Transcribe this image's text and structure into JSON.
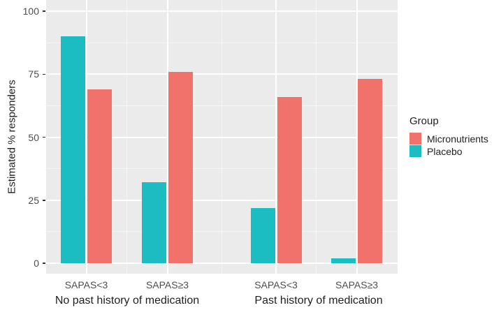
{
  "legend": {
    "title": "Group",
    "position": "right-middle"
  },
  "style": {
    "panel_background": "#EBEBEB",
    "gridline_color": "#FFFFFF",
    "tick_label_color": "#4D4D4D",
    "text_color": "#1F1F1F"
  },
  "chart_data": {
    "type": "bar",
    "title": "",
    "xlabel": "",
    "ylabel": "Estimated % responders",
    "ylim": [
      0,
      100
    ],
    "yticks": [
      0,
      25,
      50,
      75,
      100
    ],
    "grid": "white major and minor gridlines on grey panel",
    "legend_position": "right",
    "facets": [
      "No past history of medication",
      "Past history of medication"
    ],
    "categories": [
      "SAPAS<3",
      "SAPAS≥3",
      "SAPAS<3",
      "SAPAS≥3"
    ],
    "category_facet_index": [
      0,
      0,
      1,
      1
    ],
    "series": [
      {
        "name": "Placebo",
        "color": "#1CBDC2",
        "values": [
          90,
          32,
          22,
          2
        ]
      },
      {
        "name": "Micronutrients",
        "color": "#F1716B",
        "values": [
          69,
          76,
          66,
          73
        ]
      }
    ]
  }
}
